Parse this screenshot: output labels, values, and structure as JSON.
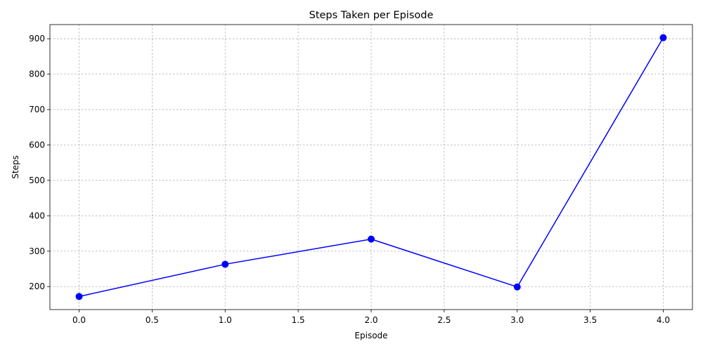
{
  "chart_data": {
    "type": "line",
    "title": "Steps Taken per Episode",
    "xlabel": "Episode",
    "ylabel": "Steps",
    "x": [
      0,
      1,
      2,
      3,
      4
    ],
    "series": [
      {
        "values": [
          172,
          263,
          334,
          199,
          903
        ],
        "color": "#0000ff",
        "marker": "circle"
      }
    ],
    "xlim": [
      -0.2,
      4.2
    ],
    "ylim": [
      135,
      940
    ],
    "xticks": [
      0.0,
      0.5,
      1.0,
      1.5,
      2.0,
      2.5,
      3.0,
      3.5,
      4.0
    ],
    "xtick_labels": [
      "0.0",
      "0.5",
      "1.0",
      "1.5",
      "2.0",
      "2.5",
      "3.0",
      "3.5",
      "4.0"
    ],
    "yticks": [
      200,
      300,
      400,
      500,
      600,
      700,
      800,
      900
    ],
    "ytick_labels": [
      "200",
      "300",
      "400",
      "500",
      "600",
      "700",
      "800",
      "900"
    ],
    "grid": true,
    "grid_color": "#b0b0b0"
  }
}
